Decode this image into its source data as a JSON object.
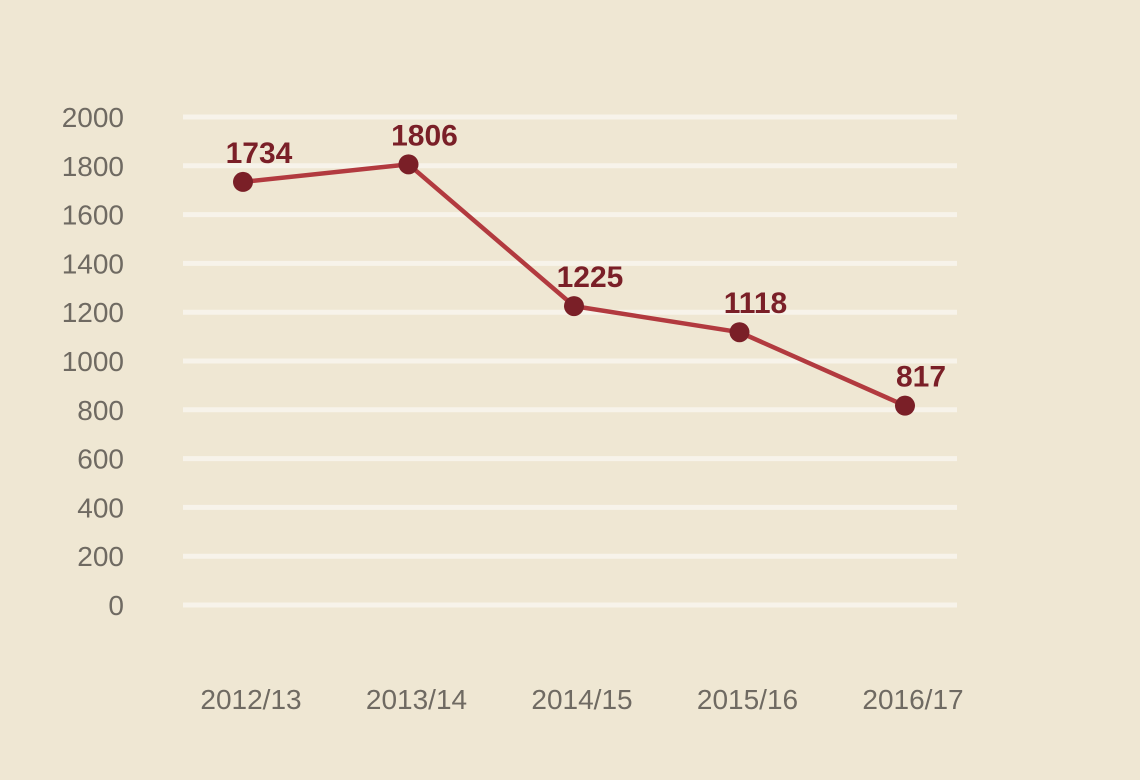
{
  "chart_data": {
    "type": "line",
    "categories": [
      "2012/13",
      "2013/14",
      "2014/15",
      "2015/16",
      "2016/17"
    ],
    "values": [
      1734,
      1806,
      1225,
      1118,
      817
    ],
    "data_labels": [
      "1734",
      "1806",
      "1225",
      "1118",
      "817"
    ],
    "yticks": [
      "0",
      "200",
      "400",
      "600",
      "800",
      "1000",
      "1200",
      "1400",
      "1600",
      "1800",
      "2000"
    ],
    "ylim": [
      0,
      2000
    ],
    "ystep": 200,
    "grid": true,
    "legend": "none",
    "colors": {
      "background": "#efe7d3",
      "gridline": "#f7f3ea",
      "line": "#b23a3f",
      "marker": "#7a1f27",
      "data_label": "#7a1f27",
      "tick_label": "#6f6a62"
    }
  }
}
